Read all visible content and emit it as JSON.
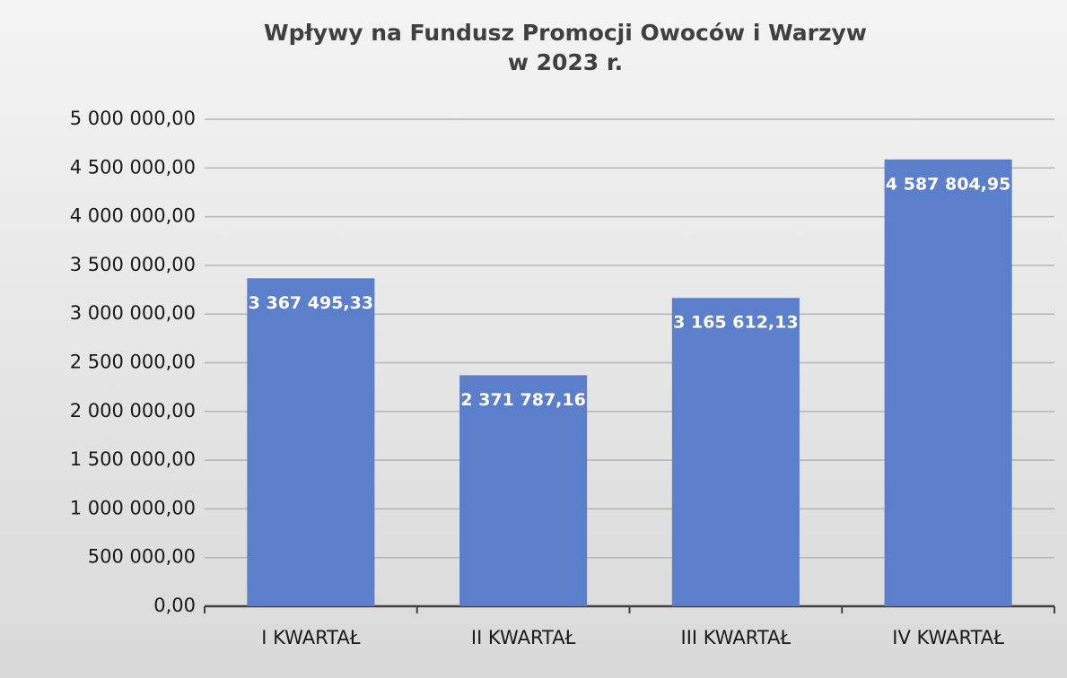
{
  "chart_data": {
    "type": "bar",
    "title": [
      "Wpływy na Fundusz Promocji  Owoców i Warzyw",
      "w 2023 r."
    ],
    "categories": [
      "I KWARTAŁ",
      "II KWARTAŁ",
      "III KWARTAŁ",
      "IV KWARTAŁ"
    ],
    "values": [
      3367495.33,
      2371787.16,
      3165612.13,
      4587804.95
    ],
    "value_labels": [
      "3 367 495,33",
      "2 371 787,16",
      "3 165 612,13",
      "4 587 804,95"
    ],
    "color": "#5b7fcb",
    "ylim": [
      0,
      5000000
    ],
    "yticks": [
      {
        "value": 0,
        "label": "0,00"
      },
      {
        "value": 500000,
        "label": "500 000,00"
      },
      {
        "value": 1000000,
        "label": "1 000 000,00"
      },
      {
        "value": 1500000,
        "label": "1 500 000,00"
      },
      {
        "value": 2000000,
        "label": "2 000 000,00"
      },
      {
        "value": 2500000,
        "label": "2 500 000,00"
      },
      {
        "value": 3000000,
        "label": "3 000 000,00"
      },
      {
        "value": 3500000,
        "label": "3 500 000,00"
      },
      {
        "value": 4000000,
        "label": "4 000 000,00"
      },
      {
        "value": 4500000,
        "label": "4 500 000,00"
      },
      {
        "value": 5000000,
        "label": "5 000 000,00"
      }
    ],
    "grid": true
  }
}
